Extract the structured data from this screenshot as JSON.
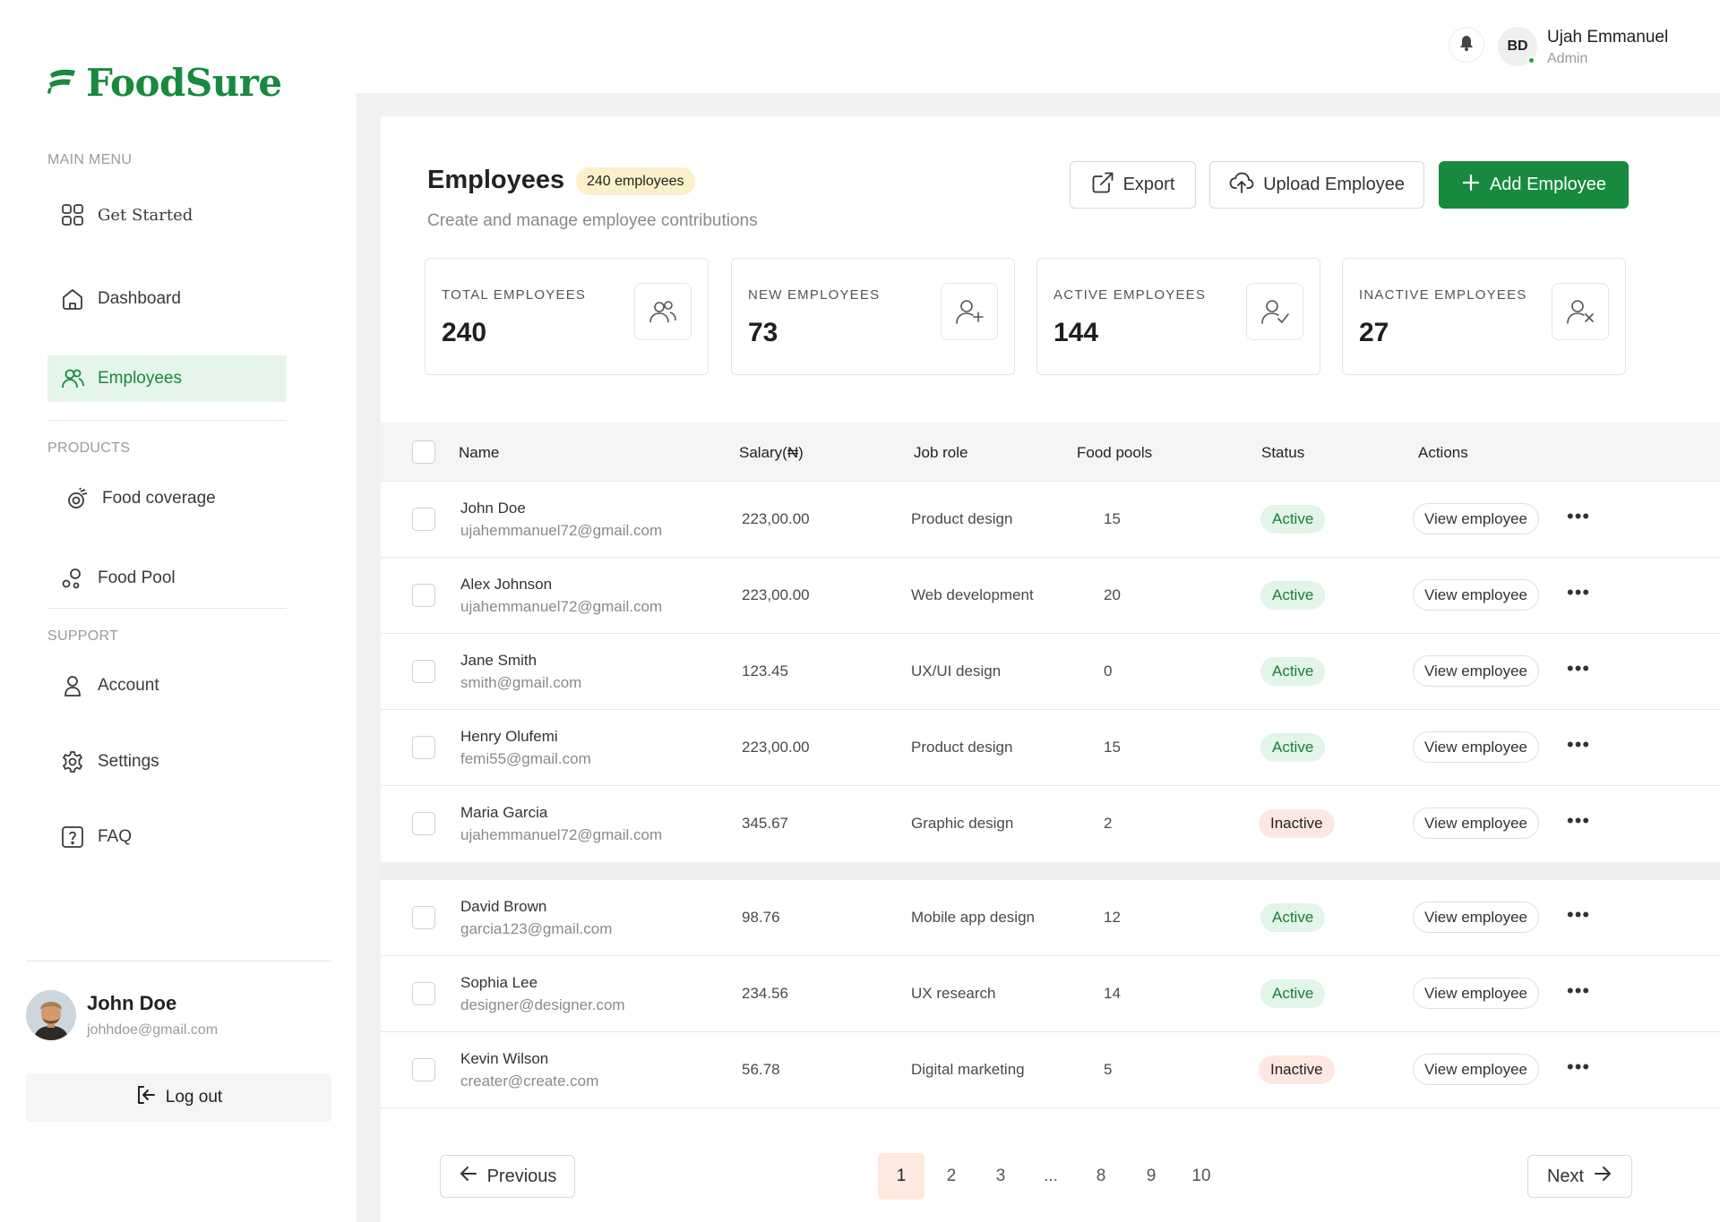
{
  "brand": {
    "name": "FoodSure",
    "color": "#178a3e"
  },
  "sidebar": {
    "main_menu_label": "MAIN MENU",
    "products_label": "PRODUCTS",
    "support_label": "SUPPORT",
    "items": [
      {
        "label": "Get Started",
        "icon": "grid-icon"
      },
      {
        "label": "Dashboard",
        "icon": "home-icon"
      },
      {
        "label": "Employees",
        "icon": "users-icon",
        "active": true
      },
      {
        "label": "Food coverage",
        "icon": "food-coverage-icon"
      },
      {
        "label": "Food Pool",
        "icon": "food-pool-icon"
      },
      {
        "label": "Account",
        "icon": "user-icon"
      },
      {
        "label": "Settings",
        "icon": "gear-icon"
      },
      {
        "label": "FAQ",
        "icon": "question-icon"
      }
    ],
    "profile": {
      "name": "John Doe",
      "email": "johhdoe@gmail.com"
    },
    "logout_label": "Log out"
  },
  "topbar": {
    "initials": "BD",
    "user_name": "Ujah Emmanuel",
    "user_role": "Admin"
  },
  "page": {
    "title": "Employees",
    "count_badge": "240 employees",
    "subtitle": "Create and manage employee contributions",
    "export_label": "Export",
    "upload_label": "Upload Employee",
    "add_label": "Add Employee"
  },
  "stats": [
    {
      "label": "TOTAL EMPLOYEES",
      "value": "240",
      "icon": "users-icon"
    },
    {
      "label": "NEW EMPLOYEES",
      "value": "73",
      "icon": "user-plus-icon"
    },
    {
      "label": "ACTIVE EMPLOYEES",
      "value": "144",
      "icon": "user-check-icon"
    },
    {
      "label": "INACTIVE EMPLOYEES",
      "value": "27",
      "icon": "user-x-icon"
    }
  ],
  "table": {
    "headers": {
      "name": "Name",
      "salary": "Salary(₦)",
      "job_role": "Job role",
      "food_pools": "Food pools",
      "status": "Status",
      "actions": "Actions"
    },
    "view_label": "View employee",
    "rows": [
      {
        "name": "John Doe",
        "email": "ujahemmanuel72@gmail.com",
        "salary": "223,00.00",
        "role": "Product design",
        "pools": "15",
        "status": "Active"
      },
      {
        "name": "Alex Johnson",
        "email": "ujahemmanuel72@gmail.com",
        "salary": "223,00.00",
        "role": "Web development",
        "pools": "20",
        "status": "Active"
      },
      {
        "name": "Jane Smith",
        "email": "smith@gmail.com",
        "salary": "123.45",
        "role": "UX/UI design",
        "pools": "0",
        "status": "Active"
      },
      {
        "name": "Henry Olufemi",
        "email": "femi55@gmail.com",
        "salary": "223,00.00",
        "role": "Product design",
        "pools": "15",
        "status": "Active"
      },
      {
        "name": "Maria Garcia",
        "email": "ujahemmanuel72@gmail.com",
        "salary": "345.67",
        "role": "Graphic design",
        "pools": "2",
        "status": "Inactive"
      },
      {
        "name": "David Brown",
        "email": "garcia123@gmail.com",
        "salary": "98.76",
        "role": "Mobile app design",
        "pools": "12",
        "status": "Active"
      },
      {
        "name": "Sophia Lee",
        "email": "designer@designer.com",
        "salary": "234.56",
        "role": "UX research",
        "pools": "14",
        "status": "Active"
      },
      {
        "name": "Kevin Wilson",
        "email": "creater@create.com",
        "salary": "56.78",
        "role": "Digital marketing",
        "pools": "5",
        "status": "Inactive"
      }
    ]
  },
  "pagination": {
    "previous_label": "Previous",
    "next_label": "Next",
    "pages": [
      "1",
      "2",
      "3",
      "...",
      "8",
      "9",
      "10"
    ],
    "current": "1"
  }
}
